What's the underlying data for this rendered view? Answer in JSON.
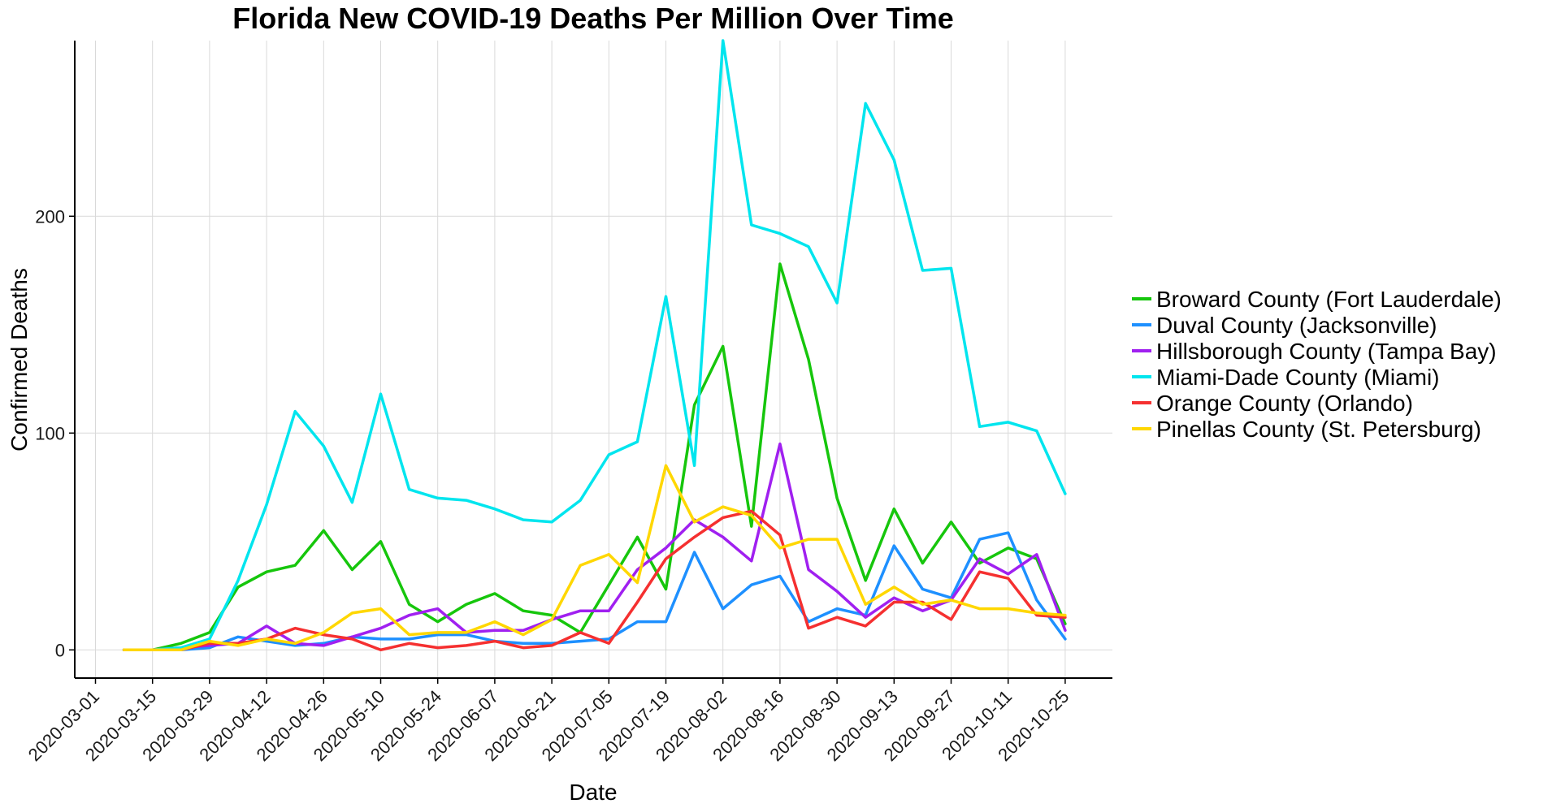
{
  "chart_data": {
    "type": "line",
    "title": "Florida New COVID-19 Deaths Per Million Over Time",
    "xlabel": "Date",
    "ylabel": "Confirmed Deaths",
    "ylim": [
      -13,
      281
    ],
    "yticks": [
      0,
      100,
      200
    ],
    "x_start": "2020-03-01",
    "x_step_days": 7,
    "x_tick_labels": [
      "2020-03-01",
      "2020-03-15",
      "2020-03-29",
      "2020-04-12",
      "2020-04-26",
      "2020-05-10",
      "2020-05-24",
      "2020-06-07",
      "2020-06-21",
      "2020-07-05",
      "2020-07-19",
      "2020-08-02",
      "2020-08-16",
      "2020-08-30",
      "2020-09-13",
      "2020-09-27",
      "2020-10-11",
      "2020-10-25"
    ],
    "x_tick_positions": [
      0,
      2,
      4,
      6,
      8,
      10,
      12,
      14,
      16,
      18,
      20,
      22,
      24,
      26,
      28,
      30,
      32,
      34
    ],
    "series_start_index": 1,
    "legend_position": "right",
    "series": [
      {
        "name": "Broward County (Fort Lauderdale)",
        "color": "#16c60c",
        "values": [
          0,
          0,
          3,
          8,
          29,
          36,
          39,
          55,
          37,
          50,
          21,
          13,
          21,
          26,
          18,
          16,
          8,
          30,
          52,
          28,
          113,
          140,
          57,
          178,
          134,
          70,
          32,
          65,
          40,
          59,
          40,
          47,
          42,
          12
        ]
      },
      {
        "name": "Duval County (Jacksonville)",
        "color": "#1e90ff",
        "values": [
          0,
          0,
          0,
          1,
          6,
          4,
          2,
          3,
          6,
          5,
          5,
          7,
          7,
          4,
          3,
          3,
          4,
          5,
          13,
          13,
          45,
          19,
          30,
          34,
          13,
          19,
          16,
          48,
          28,
          24,
          51,
          54,
          23,
          5
        ]
      },
      {
        "name": "Hillsborough County (Tampa Bay)",
        "color": "#a020f0",
        "values": [
          0,
          0,
          1,
          2,
          3,
          11,
          3,
          2,
          6,
          10,
          16,
          19,
          8,
          9,
          9,
          14,
          18,
          18,
          37,
          47,
          60,
          52,
          41,
          95,
          37,
          27,
          15,
          24,
          18,
          23,
          42,
          35,
          44,
          9
        ]
      },
      {
        "name": "Miami-Dade County (Miami)",
        "color": "#00e5ee",
        "values": [
          0,
          0,
          1,
          5,
          32,
          67,
          110,
          94,
          68,
          118,
          74,
          70,
          69,
          65,
          60,
          59,
          69,
          90,
          96,
          163,
          85,
          281,
          196,
          192,
          186,
          160,
          252,
          226,
          175,
          176,
          103,
          105,
          101,
          72
        ]
      },
      {
        "name": "Orange County (Orlando)",
        "color": "#f53030",
        "values": [
          0,
          0,
          0,
          3,
          3,
          5,
          10,
          7,
          5,
          0,
          3,
          1,
          2,
          4,
          1,
          2,
          8,
          3,
          22,
          42,
          52,
          61,
          64,
          53,
          10,
          15,
          11,
          22,
          22,
          14,
          36,
          33,
          16,
          15
        ]
      },
      {
        "name": "Pinellas County (St. Petersburg)",
        "color": "#ffd700",
        "values": [
          0,
          0,
          0,
          4,
          2,
          5,
          3,
          8,
          17,
          19,
          7,
          8,
          8,
          13,
          7,
          14,
          39,
          44,
          31,
          85,
          59,
          66,
          62,
          47,
          51,
          51,
          21,
          29,
          21,
          23,
          19,
          19,
          17,
          16
        ]
      }
    ]
  }
}
